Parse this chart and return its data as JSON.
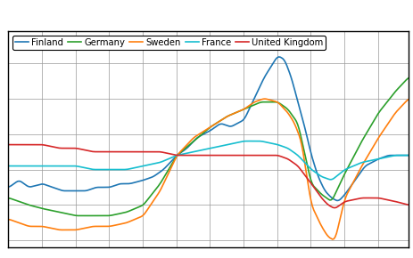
{
  "countries": [
    "Finland",
    "Germany",
    "Sweden",
    "France",
    "United Kingdom"
  ],
  "colors": [
    "#1f77b4",
    "#2ca02c",
    "#ff7f0e",
    "#17becf",
    "#d62728"
  ],
  "background_color": "#ffffff",
  "xlim": [
    2000,
    2012
  ],
  "ylim": [
    74,
    135
  ],
  "Finland_x": [
    2000,
    2000.3,
    2000.6,
    2001,
    2001.3,
    2001.6,
    2002,
    2002.3,
    2002.6,
    2003,
    2003.3,
    2003.6,
    2004,
    2004.3,
    2004.6,
    2005,
    2005.3,
    2005.6,
    2006,
    2006.3,
    2006.6,
    2007,
    2007.2,
    2007.4,
    2007.6,
    2007.8,
    2008,
    2008.2,
    2008.4,
    2008.6,
    2008.8,
    2009,
    2009.2,
    2009.4,
    2009.6,
    2009.8,
    2010,
    2010.3,
    2010.6,
    2011,
    2011.3,
    2011.6,
    2011.9
  ],
  "Finland_y": [
    91,
    93,
    91,
    92,
    91,
    90,
    90,
    90,
    91,
    91,
    92,
    92,
    93,
    94,
    96,
    100,
    102,
    105,
    107,
    109,
    108,
    110,
    114,
    118,
    122,
    125,
    128,
    127,
    122,
    115,
    108,
    100,
    94,
    90,
    88,
    87,
    89,
    93,
    97,
    99,
    100,
    100,
    100
  ],
  "Germany_x": [
    2000,
    2000.3,
    2000.6,
    2001,
    2001.5,
    2002,
    2002.5,
    2003,
    2003.5,
    2004,
    2004.5,
    2005,
    2005.5,
    2006,
    2006.5,
    2007,
    2007.5,
    2008,
    2008.3,
    2008.6,
    2009,
    2009.3,
    2009.6,
    2010,
    2010.5,
    2011,
    2011.5,
    2011.9
  ],
  "Germany_y": [
    88,
    87,
    86,
    85,
    84,
    83,
    83,
    83,
    84,
    86,
    92,
    100,
    104,
    108,
    111,
    113,
    115,
    115,
    113,
    109,
    92,
    89,
    87,
    95,
    104,
    112,
    118,
    122
  ],
  "Sweden_x": [
    2000,
    2000.3,
    2000.6,
    2001,
    2001.5,
    2002,
    2002.5,
    2003,
    2003.5,
    2004,
    2004.5,
    2005,
    2005.5,
    2006,
    2006.5,
    2007,
    2007.3,
    2007.6,
    2008,
    2008.3,
    2008.5,
    2008.7,
    2009,
    2009.3,
    2009.5,
    2009.7,
    2010,
    2010.5,
    2011,
    2011.5,
    2011.9
  ],
  "Sweden_y": [
    82,
    81,
    80,
    80,
    79,
    79,
    80,
    80,
    81,
    83,
    90,
    100,
    105,
    108,
    111,
    113,
    115,
    116,
    115,
    112,
    109,
    104,
    86,
    80,
    77,
    76,
    88,
    97,
    105,
    112,
    116
  ],
  "France_x": [
    2000,
    2000.5,
    2001,
    2001.5,
    2002,
    2002.5,
    2003,
    2003.5,
    2004,
    2004.5,
    2005,
    2005.5,
    2006,
    2006.5,
    2007,
    2007.5,
    2008,
    2008.3,
    2008.6,
    2009,
    2009.3,
    2009.6,
    2010,
    2010.5,
    2011,
    2011.5,
    2011.9
  ],
  "France_y": [
    97,
    97,
    97,
    97,
    97,
    96,
    96,
    96,
    97,
    98,
    100,
    101,
    102,
    103,
    104,
    104,
    103,
    102,
    100,
    96,
    94,
    93,
    96,
    98,
    99,
    100,
    100
  ],
  "UK_x": [
    2000,
    2000.5,
    2001,
    2001.5,
    2002,
    2002.5,
    2003,
    2003.5,
    2004,
    2004.5,
    2005,
    2005.5,
    2006,
    2006.5,
    2007,
    2007.5,
    2008,
    2008.3,
    2008.6,
    2009,
    2009.3,
    2009.5,
    2009.7,
    2010,
    2010.5,
    2011,
    2011.5,
    2011.9
  ],
  "UK_y": [
    103,
    103,
    103,
    102,
    102,
    101,
    101,
    101,
    101,
    101,
    100,
    100,
    100,
    100,
    100,
    100,
    100,
    99,
    97,
    92,
    88,
    86,
    85,
    87,
    88,
    88,
    87,
    86
  ]
}
